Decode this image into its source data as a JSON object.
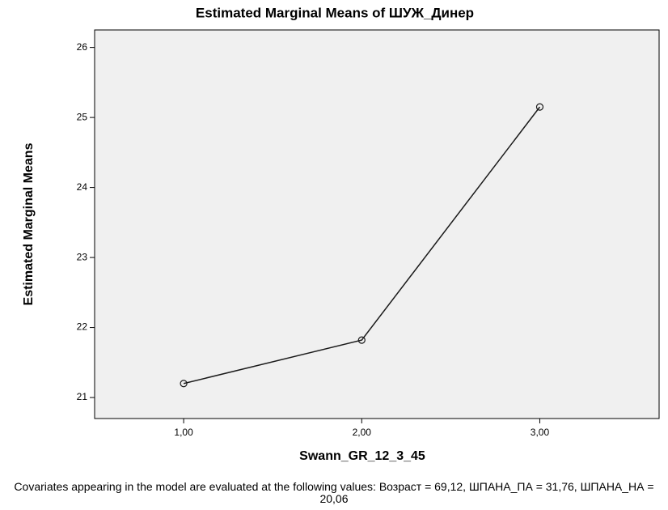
{
  "chart_data": {
    "type": "line",
    "title": "Estimated Marginal Means of ШУЖ_Динер",
    "x_label": "Swann_GR_12_3_45",
    "y_label": "Estimated Marginal Means",
    "footnote": "Covariates appearing in the model are evaluated at the following values: Возраст = 69,12, ШПАНА_ПА = 31,76, ШПАНА_НА = 20,06",
    "x": [
      1,
      2,
      3
    ],
    "values": [
      21.2,
      21.82,
      25.15
    ],
    "color": "#1a1a1a",
    "xlim": [
      0.5,
      3.67
    ],
    "xticks": [
      {
        "value": 1,
        "label": "1,00"
      },
      {
        "value": 2,
        "label": "2,00"
      },
      {
        "value": 3,
        "label": "3,00"
      }
    ],
    "ylim": [
      20.7,
      26.25
    ],
    "yticks": [
      21,
      22,
      23,
      24,
      25,
      26
    ],
    "grid": false
  }
}
